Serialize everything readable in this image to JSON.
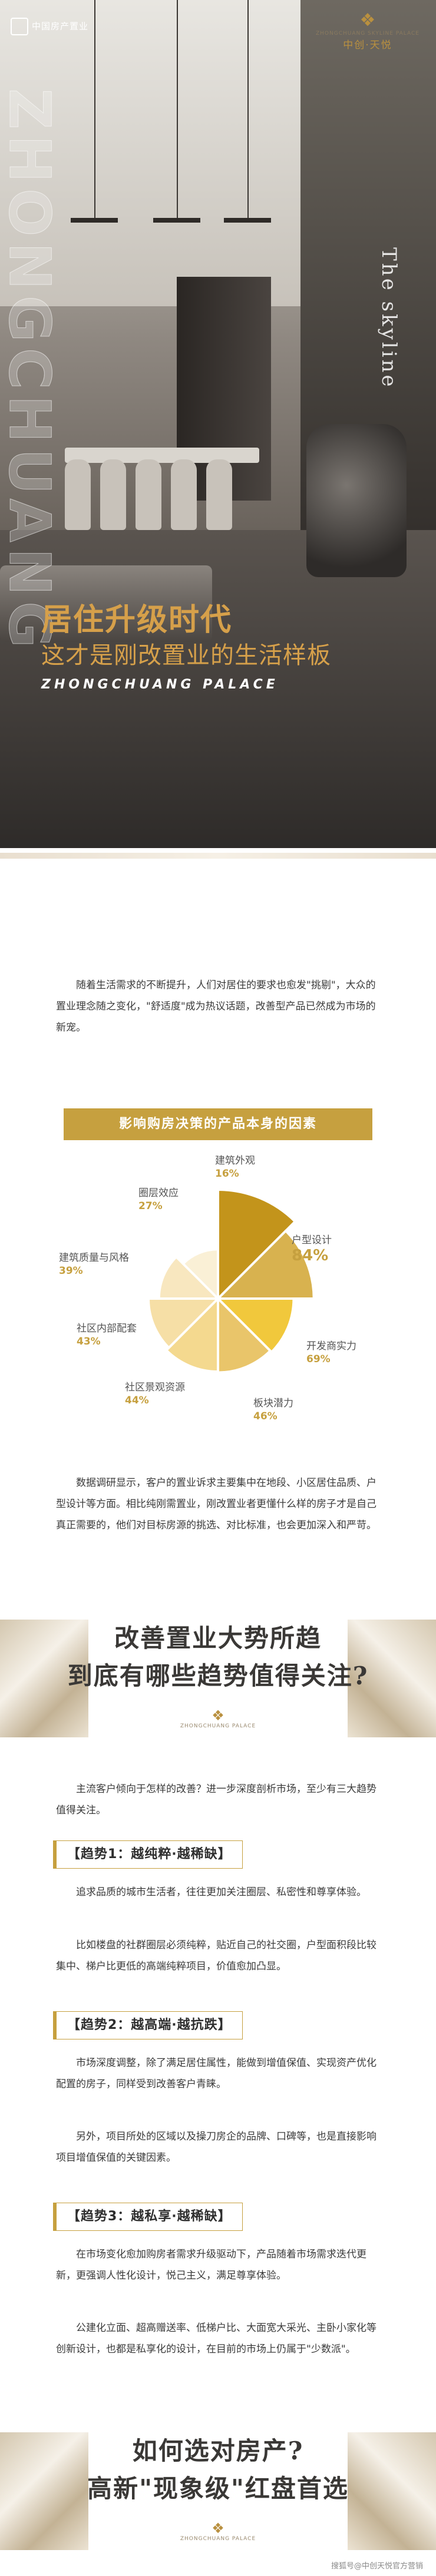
{
  "hero": {
    "logo_left": "中国房产置业",
    "logo_right_small": "ZHONGCHUANG SKYLINE PALACE",
    "logo_right_brand": "中创·天悦",
    "vertical_text": "ZHONGCHUANG PALACE",
    "skyline_text": "The skyline",
    "title": "居住升级时代",
    "subtitle": "这才是刚改置业的生活样板",
    "english": "ZHONGCHUANG PALACE"
  },
  "intro": "随着生活需求的不断提升，人们对居住的要求也愈发\"挑剔\"，大众的置业理念随之变化，\"舒适度\"成为热议话题，改善型产品已然成为市场的新宠。",
  "chart_data": {
    "type": "pie",
    "title": "影响购房决策的产品本身的因素",
    "categories": [
      "户型设计",
      "开发商实力",
      "板块潜力",
      "社区景观资源",
      "社区内部配套",
      "建筑质量与风格",
      "圈层效应",
      "建筑外观"
    ],
    "values": [
      84,
      69,
      46,
      44,
      43,
      39,
      27,
      16
    ],
    "value_labels": [
      "84%",
      "69%",
      "46%",
      "44%",
      "43%",
      "39%",
      "27%",
      "16%"
    ],
    "colors": [
      "#c3941b",
      "#d8b24f",
      "#f1c83c",
      "#e9c56a",
      "#f4d98f",
      "#f6dfa6",
      "#f8e7bf",
      "#faf0d6"
    ]
  },
  "survey_text": "数据调研显示，客户的置业诉求主要集中在地段、小区居住品质、户型设计等方面。相比纯刚需置业，刚改置业者更懂什么样的房子才是自己真正需要的，他们对目标房源的挑选、对比标准，也会更加深入和严苛。",
  "banner1": {
    "line1": "改善置业大势所趋",
    "line2": "到底有哪些趋势值得关注?",
    "logo_text": "ZHONGCHUANG PALACE"
  },
  "trend_intro": "主流客户倾向于怎样的改善？进一步深度剖析市场，至少有三大趋势值得关注。",
  "trends": [
    {
      "label": "【趋势1：越纯粹·越稀缺】",
      "paragraphs": [
        "追求品质的城市生活者，往往更加关注圈层、私密性和尊享体验。",
        "比如楼盘的社群圈层必须纯粹，贴近自己的社交圈，户型面积段比较集中、梯户比更低的高端纯粹项目，价值愈加凸显。"
      ]
    },
    {
      "label": "【趋势2：越高端·越抗跌】",
      "paragraphs": [
        "市场深度调整，除了满足居住属性，能做到增值保值、实现资产优化配置的房子，同样受到改善客户青睐。",
        "另外，项目所处的区域以及操刀房企的品牌、口碑等，也是直接影响项目增值保值的关键因素。"
      ]
    },
    {
      "label": "【趋势3：越私享·越稀缺】",
      "paragraphs": [
        "在市场变化愈加购房者需求升级驱动下，产品随着市场需求迭代更新，更强调人性化设计，悦己主义，满足尊享体验。",
        "公建化立面、超高赠送率、低梯户比、大面宽大采光、主卧小家化等创新设计，也都是私享化的设计，在目前的市场上仍属于\"少数派\"。"
      ]
    }
  ],
  "banner2": {
    "line1": "如何选对房产?",
    "line2": "高新\"现象级\"红盘首选",
    "logo_text": "ZHONGCHUANG PALACE"
  },
  "watermark": "搜狐号@中创天悦官方营销"
}
